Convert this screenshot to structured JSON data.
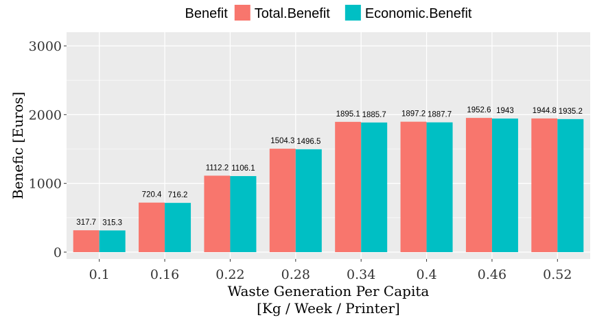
{
  "chart_data": {
    "type": "bar",
    "title": "",
    "xlabel_lines": [
      "Waste Generation Per Capita",
      "[Kg / Week / Printer]"
    ],
    "ylabel": "Benefic [Euros]",
    "categories": [
      "0.1",
      "0.16",
      "0.22",
      "0.28",
      "0.34",
      "0.4",
      "0.46",
      "0.52"
    ],
    "series": [
      {
        "name": "Total.Benefit",
        "color": "#F8766D",
        "values": [
          317.7,
          720.4,
          1112.2,
          1504.3,
          1895.1,
          1897.2,
          1952.6,
          1944.8
        ]
      },
      {
        "name": "Economic.Benefit",
        "color": "#00BFC4",
        "values": [
          315.3,
          716.2,
          1106.1,
          1496.5,
          1885.7,
          1887.7,
          1943,
          1935.2
        ]
      }
    ],
    "ylim": [
      0,
      3100
    ],
    "yticks": [
      0,
      1000,
      2000,
      3000
    ],
    "legend": {
      "title": "Benefit",
      "position": "top"
    },
    "grid": true,
    "panel_background": "#EBEBEB"
  }
}
